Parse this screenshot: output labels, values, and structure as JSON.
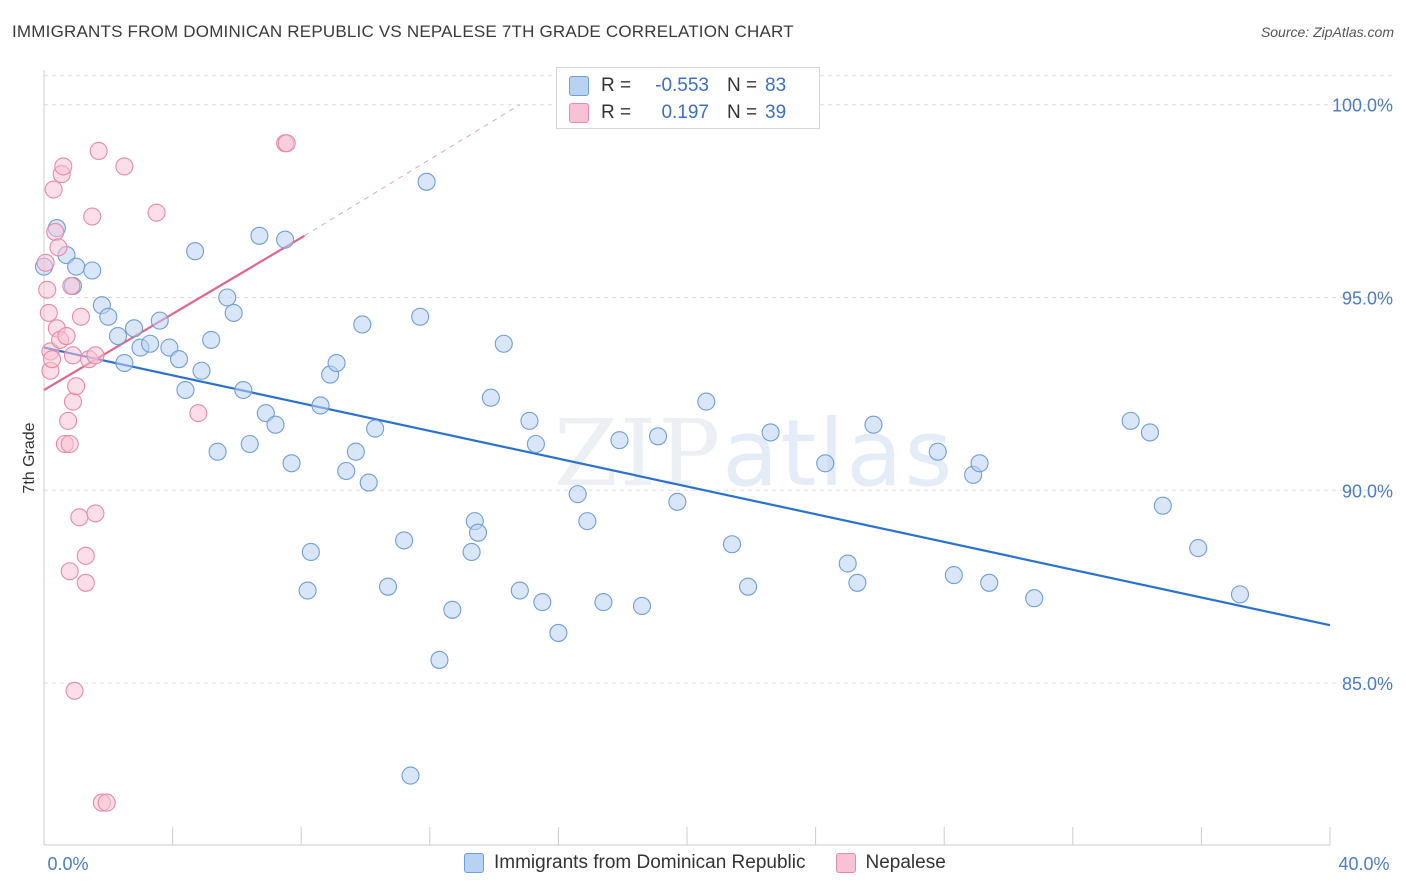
{
  "title": "IMMIGRANTS FROM DOMINICAN REPUBLIC VS NEPALESE 7TH GRADE CORRELATION CHART",
  "source": "Source: ZipAtlas.com",
  "watermark": {
    "zip": "ZIP",
    "atlas": "atlas"
  },
  "colors": {
    "blue_fill": "#b9d2f2",
    "blue_stroke": "#6f9ed8",
    "blue_line": "#2a72d1",
    "pink_fill": "#f7c2d3",
    "pink_stroke": "#e88aa8",
    "pink_line": "#e0658f",
    "tick_text": "#4a7cc7",
    "grid": "#dddddd"
  },
  "legend": {
    "rows": [
      {
        "r_label": "R =",
        "r_value": "-0.553",
        "n_label": "N =",
        "n_value": "83"
      },
      {
        "r_label": "R =",
        "r_value": "0.197",
        "n_label": "N =",
        "n_value": "39"
      }
    ]
  },
  "bottom_legend": {
    "items": [
      {
        "label": "Immigrants from Dominican Republic"
      },
      {
        "label": "Nepalese"
      }
    ]
  },
  "chart_data": {
    "type": "scatter",
    "title": "IMMIGRANTS FROM DOMINICAN REPUBLIC VS NEPALESE 7TH GRADE CORRELATION CHART",
    "xlabel": "",
    "ylabel": "7th Grade",
    "xlim": [
      0,
      40
    ],
    "ylim": [
      80.8,
      100.9
    ],
    "x_tick_labels": [
      "0.0%",
      "40.0%"
    ],
    "y_ticks": [
      {
        "value": 100,
        "label": "100.0%"
      },
      {
        "value": 95,
        "label": "95.0%"
      },
      {
        "value": 90,
        "label": "90.0%"
      },
      {
        "value": 85,
        "label": "85.0%"
      }
    ],
    "grid": "horizontal dashed",
    "series": [
      {
        "name": "Immigrants from Dominican Republic",
        "r": -0.553,
        "n": 83,
        "trend": {
          "x": [
            0,
            40
          ],
          "y": [
            93.7,
            86.5
          ],
          "style": "solid"
        },
        "points": [
          [
            0.0,
            95.8
          ],
          [
            0.4,
            96.8
          ],
          [
            0.7,
            96.1
          ],
          [
            0.9,
            95.3
          ],
          [
            1.0,
            95.8
          ],
          [
            1.5,
            95.7
          ],
          [
            1.8,
            94.8
          ],
          [
            2.0,
            94.5
          ],
          [
            2.3,
            94.0
          ],
          [
            2.5,
            93.3
          ],
          [
            2.8,
            94.2
          ],
          [
            3.0,
            93.7
          ],
          [
            3.3,
            93.8
          ],
          [
            3.6,
            94.4
          ],
          [
            3.9,
            93.7
          ],
          [
            4.2,
            93.4
          ],
          [
            4.4,
            92.6
          ],
          [
            4.7,
            96.2
          ],
          [
            4.9,
            93.1
          ],
          [
            5.2,
            93.9
          ],
          [
            5.4,
            91.0
          ],
          [
            5.7,
            95.0
          ],
          [
            5.9,
            94.6
          ],
          [
            6.2,
            92.6
          ],
          [
            6.4,
            91.2
          ],
          [
            6.7,
            96.6
          ],
          [
            6.9,
            92.0
          ],
          [
            7.2,
            91.7
          ],
          [
            7.5,
            96.5
          ],
          [
            7.7,
            90.7
          ],
          [
            8.2,
            87.4
          ],
          [
            8.3,
            88.4
          ],
          [
            8.6,
            92.2
          ],
          [
            8.9,
            93.0
          ],
          [
            9.1,
            93.3
          ],
          [
            9.4,
            90.5
          ],
          [
            9.7,
            91.0
          ],
          [
            9.9,
            94.3
          ],
          [
            10.1,
            90.2
          ],
          [
            10.3,
            91.6
          ],
          [
            10.7,
            87.5
          ],
          [
            11.2,
            88.7
          ],
          [
            11.4,
            82.6
          ],
          [
            11.7,
            94.5
          ],
          [
            11.9,
            98.0
          ],
          [
            12.3,
            85.6
          ],
          [
            12.7,
            86.9
          ],
          [
            13.3,
            88.4
          ],
          [
            13.4,
            89.2
          ],
          [
            13.5,
            88.9
          ],
          [
            13.9,
            92.4
          ],
          [
            14.3,
            93.8
          ],
          [
            14.8,
            87.4
          ],
          [
            15.1,
            91.8
          ],
          [
            15.3,
            91.2
          ],
          [
            15.5,
            87.1
          ],
          [
            16.0,
            86.3
          ],
          [
            16.6,
            89.9
          ],
          [
            16.9,
            89.2
          ],
          [
            17.4,
            87.1
          ],
          [
            17.9,
            91.3
          ],
          [
            18.6,
            87.0
          ],
          [
            19.1,
            91.4
          ],
          [
            19.7,
            89.7
          ],
          [
            20.6,
            92.3
          ],
          [
            21.4,
            88.6
          ],
          [
            21.9,
            87.5
          ],
          [
            22.6,
            91.5
          ],
          [
            24.3,
            90.7
          ],
          [
            25.0,
            88.1
          ],
          [
            25.3,
            87.6
          ],
          [
            25.8,
            91.7
          ],
          [
            27.8,
            91.0
          ],
          [
            28.3,
            87.8
          ],
          [
            28.9,
            90.4
          ],
          [
            29.1,
            90.7
          ],
          [
            29.4,
            87.6
          ],
          [
            30.8,
            87.2
          ],
          [
            33.8,
            91.8
          ],
          [
            34.4,
            91.5
          ],
          [
            34.8,
            89.6
          ],
          [
            35.9,
            88.5
          ],
          [
            37.2,
            87.3
          ]
        ]
      },
      {
        "name": "Nepalese",
        "r": 0.197,
        "n": 39,
        "trend": {
          "x": [
            0,
            8.1
          ],
          "y": [
            92.6,
            96.6
          ],
          "style": "solid",
          "dashed_extension_to": [
            14.8,
            100.0
          ]
        },
        "points": [
          [
            0.05,
            95.9
          ],
          [
            0.1,
            95.2
          ],
          [
            0.15,
            94.6
          ],
          [
            0.2,
            93.6
          ],
          [
            0.2,
            93.1
          ],
          [
            0.25,
            93.4
          ],
          [
            0.3,
            97.8
          ],
          [
            0.35,
            96.7
          ],
          [
            0.4,
            94.2
          ],
          [
            0.45,
            96.3
          ],
          [
            0.5,
            93.9
          ],
          [
            0.55,
            98.2
          ],
          [
            0.6,
            98.4
          ],
          [
            0.65,
            91.2
          ],
          [
            0.7,
            94.0
          ],
          [
            0.75,
            91.8
          ],
          [
            0.8,
            91.2
          ],
          [
            0.8,
            87.9
          ],
          [
            0.85,
            95.3
          ],
          [
            0.9,
            93.5
          ],
          [
            0.9,
            92.3
          ],
          [
            0.95,
            84.8
          ],
          [
            1.0,
            92.7
          ],
          [
            1.1,
            89.3
          ],
          [
            1.15,
            94.5
          ],
          [
            1.3,
            87.6
          ],
          [
            1.3,
            88.3
          ],
          [
            1.4,
            93.4
          ],
          [
            1.5,
            97.1
          ],
          [
            1.6,
            89.4
          ],
          [
            1.6,
            93.5
          ],
          [
            1.7,
            98.8
          ],
          [
            1.8,
            81.9
          ],
          [
            1.95,
            81.9
          ],
          [
            2.5,
            98.4
          ],
          [
            3.5,
            97.2
          ],
          [
            4.8,
            92.0
          ],
          [
            7.5,
            99.0
          ],
          [
            7.55,
            99.0
          ]
        ]
      }
    ]
  }
}
